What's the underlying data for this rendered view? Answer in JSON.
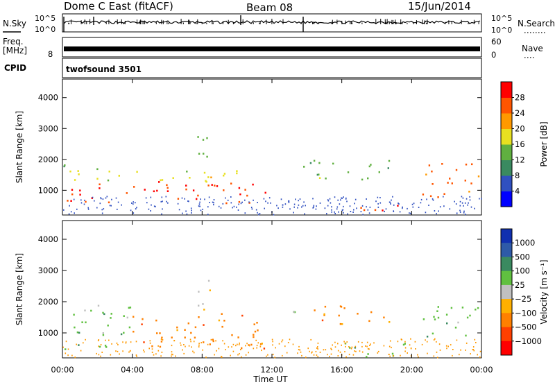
{
  "header": {
    "station": "Dome C East (fitACF)",
    "beam": "Beam 08",
    "date": "15/Jun/2014"
  },
  "noise_panel": {
    "label": "N.Sky",
    "left_ticks": [
      "10^5",
      "10^0"
    ],
    "right_ticks": [
      "10^5",
      "10^0"
    ],
    "right_label": "N.Search"
  },
  "freq_panel": {
    "label_line1": "Freq.",
    "label_line2": "[MHz]",
    "left_tick": "8",
    "right_ticks": [
      "60",
      "0"
    ],
    "right_label": "Nave"
  },
  "cpid_panel": {
    "label": "CPID",
    "program": "twofsound 3501"
  },
  "chart_data": [
    {
      "type": "heatmap",
      "name": "Power",
      "ylabel": "Slant Range [km]",
      "xlabel": "Time UT",
      "x_ticks": [
        "00:00",
        "04:00",
        "08:00",
        "12:00",
        "16:00",
        "20:00",
        "00:00"
      ],
      "y_ticks": [
        1000,
        2000,
        3000,
        4000
      ],
      "ylim": [
        200,
        4600
      ],
      "xlim_hours": [
        0,
        24
      ],
      "colorbar": {
        "label": "Power [dB]",
        "ticks": [
          "4",
          "8",
          "12",
          "16",
          "20",
          "24",
          "28"
        ],
        "colors": [
          "#0000ff",
          "#3050c0",
          "#3a8a60",
          "#60b040",
          "#e8e020",
          "#ff9900",
          "#ff5500",
          "#ff0000"
        ]
      },
      "regions": [
        {
          "t": [
            0.0,
            11.6
          ],
          "r": [
            600,
            1300
          ],
          "level": 28
        },
        {
          "t": [
            0.0,
            11.6
          ],
          "r": [
            1300,
            1700
          ],
          "level": 18
        },
        {
          "t": [
            0.0,
            2.0
          ],
          "r": [
            1700,
            2000
          ],
          "level": 12
        },
        {
          "t": [
            7.5,
            8.5
          ],
          "r": [
            1700,
            2900
          ],
          "level": 14
        },
        {
          "t": [
            13.2,
            14.2
          ],
          "r": [
            1550,
            2000
          ],
          "level": 10
        },
        {
          "t": [
            14.3,
            19.0
          ],
          "r": [
            1350,
            2000
          ],
          "level": 14
        },
        {
          "t": [
            17.0,
            20.0
          ],
          "r": [
            300,
            600
          ],
          "level": 28
        },
        {
          "t": [
            20.5,
            24.0
          ],
          "r": [
            800,
            1900
          ],
          "level": 24
        }
      ]
    },
    {
      "type": "heatmap",
      "name": "Velocity",
      "ylabel": "Slant Range [km]",
      "xlabel": "Time UT",
      "x_ticks": [
        "00:00",
        "04:00",
        "08:00",
        "12:00",
        "16:00",
        "20:00",
        "00:00"
      ],
      "y_ticks": [
        1000,
        2000,
        3000,
        4000
      ],
      "ylim": [
        200,
        4600
      ],
      "xlim_hours": [
        0,
        24
      ],
      "colorbar": {
        "label": "Velocity [m s⁻¹]",
        "ticks": [
          "1000",
          "500",
          "100",
          "25",
          "−25",
          "−100",
          "−500",
          "−1000"
        ],
        "colors": [
          "#1030b0",
          "#2e5aa8",
          "#3a8a60",
          "#60c040",
          "#c0c0c0",
          "#ffb000",
          "#ff8000",
          "#ff4000",
          "#ff0000"
        ]
      },
      "regions": [
        {
          "t": [
            0.0,
            4.0
          ],
          "r": [
            500,
            1900
          ],
          "level": 100
        },
        {
          "t": [
            4.0,
            11.6
          ],
          "r": [
            500,
            1700
          ],
          "level": -100
        },
        {
          "t": [
            7.5,
            8.5
          ],
          "r": [
            1700,
            2900
          ],
          "level": 25
        },
        {
          "t": [
            13.2,
            14.2
          ],
          "r": [
            1500,
            2000
          ],
          "level": 100
        },
        {
          "t": [
            14.3,
            19.0
          ],
          "r": [
            1300,
            2000
          ],
          "level": -100
        },
        {
          "t": [
            16.0,
            20.0
          ],
          "r": [
            250,
            700
          ],
          "level": 100
        },
        {
          "t": [
            20.5,
            24.0
          ],
          "r": [
            800,
            1900
          ],
          "level": 100
        }
      ]
    }
  ]
}
